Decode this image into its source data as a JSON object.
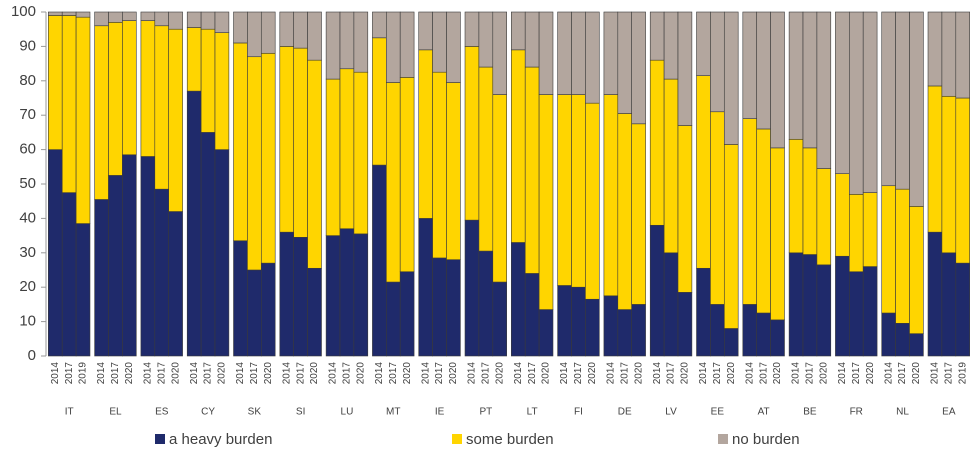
{
  "chart_data": {
    "type": "stacked_bar",
    "categories": [
      "2014",
      "2017",
      "2019",
      "2014",
      "2017",
      "2020",
      "2014",
      "2017",
      "2020",
      "2014",
      "2017",
      "2020",
      "2014",
      "2017",
      "2020",
      "2014",
      "2017",
      "2020",
      "2014",
      "2017",
      "2020",
      "2014",
      "2017",
      "2020",
      "2014",
      "2017",
      "2020",
      "2014",
      "2017",
      "2020",
      "2014",
      "2017",
      "2020",
      "2014",
      "2017",
      "2020",
      "2014",
      "2017",
      "2020",
      "2014",
      "2017",
      "2020",
      "2014",
      "2017",
      "2020",
      "2014",
      "2017",
      "2020",
      "2014",
      "2017",
      "2020",
      "2014",
      "2017",
      "2020",
      "2014",
      "2017",
      "2020",
      "2014",
      "2017",
      "2019"
    ],
    "groups": [
      "IT",
      "EL",
      "ES",
      "CY",
      "SK",
      "SI",
      "LU",
      "MT",
      "IE",
      "PT",
      "LT",
      "FI",
      "DE",
      "LV",
      "EE",
      "AT",
      "BE",
      "FR",
      "NL",
      "EA"
    ],
    "series": [
      {
        "name": "a heavy burden",
        "color": "#1f2a6b",
        "values": [
          60,
          47.5,
          38.5,
          45.5,
          52.5,
          58.5,
          58,
          48.5,
          42,
          77,
          65,
          60,
          33.5,
          25,
          27,
          36,
          34.5,
          25.5,
          35,
          37,
          35.5,
          55.5,
          21.5,
          24.5,
          40,
          28.5,
          28,
          39.5,
          30.5,
          21.5,
          33,
          24,
          13.5,
          20.5,
          20,
          16.5,
          17.5,
          13.5,
          15,
          38,
          30,
          18.5,
          25.5,
          15,
          8,
          15,
          12.5,
          10.5,
          30,
          29.5,
          26.5,
          29,
          24.5,
          26,
          12.5,
          9.5,
          6.5,
          36,
          30,
          27
        ]
      },
      {
        "name": "some burden",
        "color": "#ffd500",
        "values": [
          39,
          51.5,
          60,
          50.5,
          44.5,
          39,
          39.5,
          47.5,
          53,
          18.5,
          30,
          34,
          57.5,
          62,
          61,
          54,
          55,
          60.5,
          45.5,
          46.5,
          47,
          37,
          58,
          56.5,
          49,
          54,
          51.5,
          50.5,
          53.5,
          54.5,
          56,
          60,
          62.5,
          55.5,
          56,
          57,
          58.5,
          57,
          52.5,
          48,
          50.5,
          48.5,
          56,
          56,
          53.5,
          54,
          53.5,
          50,
          33,
          31,
          28,
          24,
          22.5,
          21.5,
          37,
          39,
          37,
          42.5,
          45.5,
          48
        ]
      },
      {
        "name": "no burden",
        "color": "#b3a69e",
        "values": [
          1,
          1,
          1.5,
          4,
          3,
          2.5,
          2.5,
          4,
          5,
          4.5,
          5,
          6,
          9,
          13,
          12,
          10,
          10.5,
          14,
          19.5,
          16.5,
          17.5,
          7.5,
          20.5,
          19,
          11,
          17.5,
          20.5,
          10,
          16,
          24,
          11,
          16,
          24,
          24,
          24,
          26.5,
          24,
          29.5,
          32.5,
          14,
          19.5,
          33,
          18.5,
          29,
          38.5,
          31,
          34,
          39.5,
          37,
          39.5,
          45.5,
          47,
          53,
          52.5,
          50.5,
          51.5,
          56.5,
          21.5,
          24.5,
          25
        ]
      }
    ],
    "ylim": [
      0,
      100
    ],
    "yticks": [
      0,
      10,
      20,
      30,
      40,
      50,
      60,
      70,
      80,
      90,
      100
    ]
  }
}
